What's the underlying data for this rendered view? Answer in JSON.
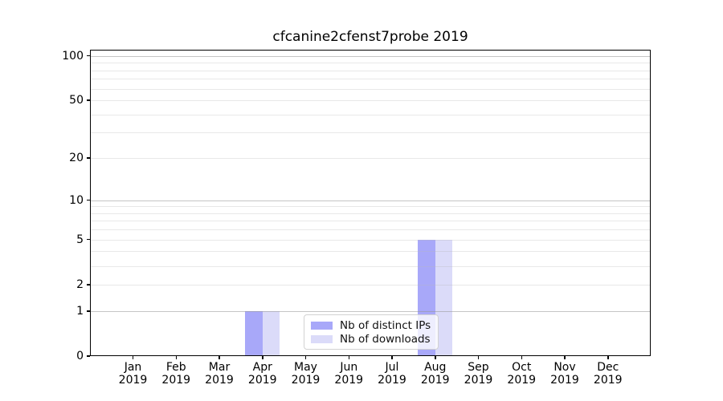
{
  "title": "cfcanine2cfenst7probe 2019",
  "chart_data": {
    "type": "bar",
    "title": "cfcanine2cfenst7probe 2019",
    "categories": [
      "Jan 2019",
      "Feb 2019",
      "Mar 2019",
      "Apr 2019",
      "May 2019",
      "Jun 2019",
      "Jul 2019",
      "Aug 2019",
      "Sep 2019",
      "Oct 2019",
      "Nov 2019",
      "Dec 2019"
    ],
    "month_labels": [
      "Jan",
      "Feb",
      "Mar",
      "Apr",
      "May",
      "Jun",
      "Jul",
      "Aug",
      "Sep",
      "Oct",
      "Nov",
      "Dec"
    ],
    "year_label": "2019",
    "series": [
      {
        "name": "Nb of distinct IPs",
        "color": "#a8a8f9",
        "values": [
          0,
          0,
          0,
          1,
          0,
          0,
          0,
          5,
          0,
          0,
          0,
          0
        ]
      },
      {
        "name": "Nb of downloads",
        "color": "#dbdbf9",
        "values": [
          0,
          0,
          0,
          1,
          0,
          0,
          0,
          5,
          0,
          0,
          0,
          0
        ]
      }
    ],
    "yscale": "log1p",
    "ylim": [
      0,
      110
    ],
    "ytick_values": [
      100,
      50,
      20,
      10,
      5,
      2,
      1,
      0
    ],
    "ytick_labels": [
      "100",
      "50",
      "20",
      "10",
      "5",
      "2",
      "1",
      "0"
    ],
    "major_gridlines": [
      1,
      10,
      100
    ],
    "minor_gridlines": [
      2,
      3,
      4,
      5,
      6,
      7,
      8,
      9,
      20,
      30,
      40,
      50,
      60,
      70,
      80,
      90
    ],
    "grid": true,
    "legend_position": "lower center"
  },
  "colors": {
    "bar_distinct_ips": "#a8a8f9",
    "bar_downloads": "#dbdbf9",
    "grid_major": "#d4d4d4",
    "grid_minor": "#ececec",
    "spine": "#000000",
    "background": "#ffffff",
    "legend_border": "#d2d2d2"
  }
}
